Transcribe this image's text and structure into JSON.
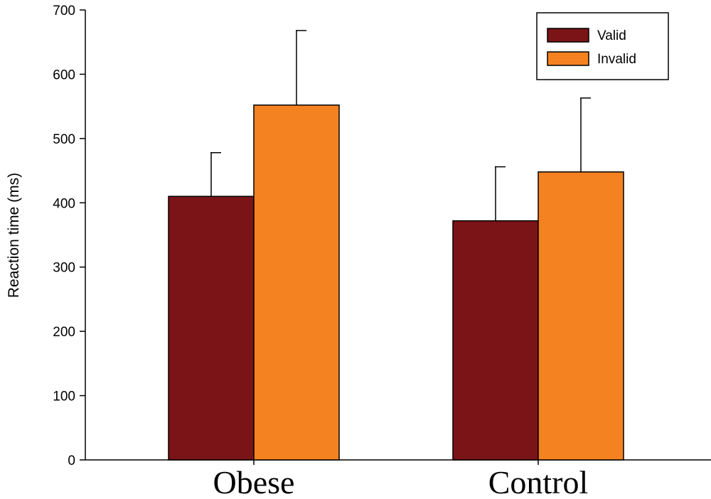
{
  "chart_data": {
    "type": "bar",
    "title": "",
    "xlabel": "",
    "ylabel": "Reaction time (ms)",
    "ylim": [
      0,
      700
    ],
    "yticks": [
      0,
      100,
      200,
      300,
      400,
      500,
      600,
      700
    ],
    "categories": [
      "Obese",
      "Control"
    ],
    "series": [
      {
        "name": "Valid",
        "color": "#7a1416",
        "values": [
          410,
          372
        ],
        "error": [
          68,
          84
        ]
      },
      {
        "name": "Invalid",
        "color": "#f58220",
        "values": [
          552,
          448
        ],
        "error": [
          116,
          115
        ]
      }
    ],
    "legend": "top-right",
    "grid": false
  }
}
